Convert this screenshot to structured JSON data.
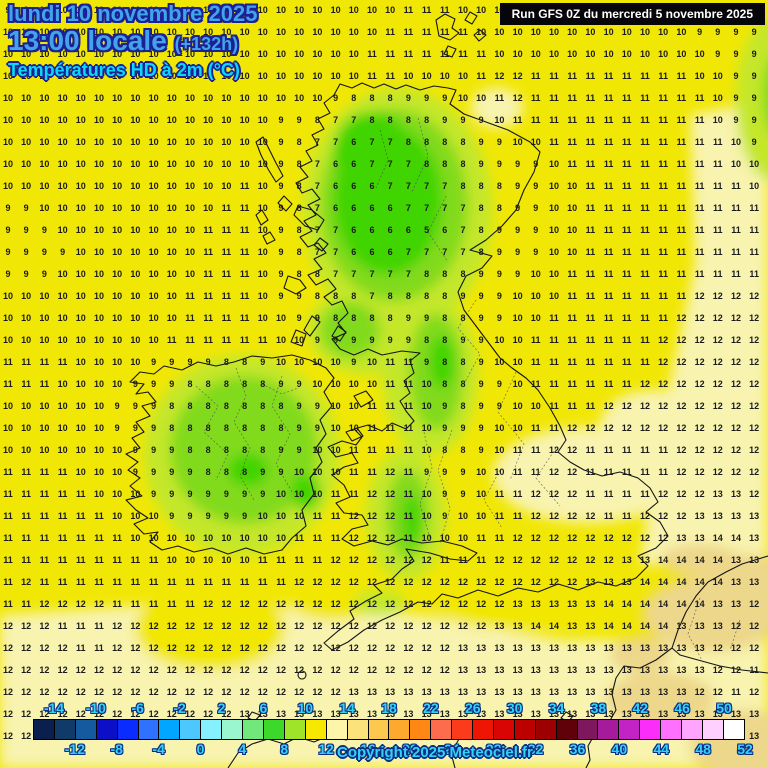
{
  "header": {
    "date_line": "lundi 10 novembre 2025",
    "time_line": "13:00 locale",
    "time_offset": "(+132h)",
    "variable_line": "Températures HD à 2m (°C)"
  },
  "run_info": {
    "label": "Run GFS 0Z du mercredi 5 novembre 2025"
  },
  "copyright": "Copyright 2025 Meteociel.fr",
  "scale": {
    "unit": "°C",
    "min": -16,
    "max": 52,
    "step": 2,
    "top_labels": [
      -14,
      -10,
      -6,
      -2,
      2,
      6,
      10,
      14,
      18,
      22,
      26,
      30,
      34,
      38,
      42,
      46,
      50
    ],
    "bottom_labels": [
      -12,
      -8,
      -4,
      0,
      4,
      8,
      12,
      16,
      20,
      24,
      28,
      32,
      36,
      40,
      44,
      48,
      52
    ],
    "cell_colors": [
      "#0a1f4d",
      "#103a68",
      "#155a9e",
      "#0b10c8",
      "#0b2cfe",
      "#2e72ff",
      "#00a6ff",
      "#4cc8ff",
      "#85f0ff",
      "#9af6cf",
      "#72e87c",
      "#3cd92a",
      "#a0e42a",
      "#f6e800",
      "#fdf6a8",
      "#fbe27a",
      "#fdc84e",
      "#ffa82e",
      "#ff8714",
      "#fe6c4e",
      "#fc3a1c",
      "#ef1505",
      "#d90404",
      "#bc0000",
      "#9c0000",
      "#600008",
      "#7f175f",
      "#a51b9b",
      "#c322c4",
      "#fb2dfb",
      "#ff70ff",
      "#ffa5ff",
      "#fdd0fd",
      "#ffffff"
    ]
  },
  "map_colors": {
    "base_yellow": "#f1e705",
    "pale_yellow_12c": "#f8f3ae",
    "sand_14c": "#edd78a",
    "yellow_green_9c": "#c4e72b",
    "green_8c": "#82da1b",
    "bright_green_6c": "#3fd400",
    "coastline": "#141414",
    "number_text": "#1b1b1b"
  },
  "temperature_grid": {
    "cols": 42,
    "rows": 34,
    "values": [
      "9 9 10 10 10 10 10 10 10 10 10 10 10 10 10 10 10 10 10 10 10 10 11 11 11 10 10 10 10 10 10 10 10 10 10 10 10 10 10 9 9 9",
      "10 10 10 10 10 10 10 10 10 10 10 10 10 10 10 10 10 10 10 10 10 11 11 11 11 11 10 10 10 10 10 10 10 10 10 10 10 10 9 9 9 9",
      "10 10 10 10 10 10 10 10 10 10 10 10 10 10 10 10 10 10 10 10 11 11 11 11 11 11 11 10 10 10 10 10 10 10 10 10 10 10 10 9 9 9",
      "10 10 10 10 10 10 10 10 10 10 10 10 10 10 10 10 10 10 10 10 11 11 10 10 10 10 11 12 12 11 11 11 11 11 11 11 11 11 10 10 9 9",
      "10 10 10 10 10 10 10 10 10 10 10 10 10 10 10 10 10 10 9 8 8 8 9 9 9 10 10 11 12 11 11 11 11 11 11 11 11 11 11 10 9 9",
      "10 10 10 10 10 10 10 10 10 10 10 10 10 10 10 9 9 8 7 7 8 8 8 8 9 9 9 10 11 11 11 11 11 11 11 11 11 11 11 10 9 9",
      "10 10 10 10 10 10 10 10 10 10 10 10 10 10 10 9 8 7 7 6 7 7 8 8 8 8 9 9 10 10 11 11 11 11 11 11 11 11 11 11 10 9",
      "10 10 10 10 10 10 10 10 10 10 10 10 10 10 10 9 8 7 6 6 7 7 7 8 8 8 9 9 9 9 10 11 11 11 11 11 11 11 11 11 10 10",
      "10 10 10 10 10 10 10 10 10 10 10 10 10 11 10 9 8 7 6 6 6 7 7 7 7 8 8 8 9 9 10 10 11 11 11 11 11 11 11 11 11 10",
      "9 9 10 10 10 10 10 10 10 10 10 10 11 11 10 9 8 7 6 6 6 6 7 7 7 7 8 8 9 9 10 10 11 11 11 11 11 11 11 11 11 11",
      "9 9 9 10 10 10 10 10 10 10 10 11 11 11 10 9 8 7 7 6 6 6 6 5 6 7 8 9 9 9 10 10 11 11 11 11 11 11 11 11 11 11",
      "9 9 9 9 10 10 10 10 10 10 10 11 11 11 10 9 8 7 7 6 6 6 7 7 7 7 8 9 9 9 10 10 11 11 11 11 11 11 11 11 11 11",
      "9 9 9 10 10 10 10 10 10 10 10 11 11 11 10 9 8 8 7 7 7 7 7 8 8 8 9 9 9 10 10 11 11 11 11 11 11 11 11 11 11 11",
      "10 10 10 10 10 10 10 10 10 10 11 11 11 11 10 9 9 8 8 8 7 8 8 8 8 9 9 9 10 10 10 11 11 11 11 11 11 11 12 12 12 12",
      "10 10 10 10 10 10 10 10 10 10 11 11 11 11 10 10 9 9 8 8 8 8 9 9 8 8 9 9 10 10 11 11 11 11 11 11 11 12 12 12 12 12",
      "10 10 10 10 10 10 10 10 10 11 11 11 11 11 11 10 10 9 9 9 9 9 9 8 8 9 9 10 10 11 11 11 11 11 11 11 12 12 12 12 12 12",
      "11 11 11 11 10 10 10 10 9 9 9 9 8 8 9 10 10 10 10 9 10 11 11 9 8 8 9 10 10 11 11 11 11 11 11 11 12 12 12 12 12 12",
      "11 11 11 10 10 10 10 9 9 9 8 8 8 8 8 9 9 10 10 10 10 11 11 10 8 8 9 9 10 11 11 11 11 11 11 12 12 12 12 12 12 12",
      "10 10 10 10 10 10 9 9 9 8 8 8 8 8 8 8 9 9 10 10 11 11 11 10 9 8 9 9 10 10 11 11 11 12 12 12 12 12 12 12 12 12",
      "10 10 10 10 10 10 9 9 9 8 8 8 8 8 8 8 9 9 10 10 11 11 11 10 9 9 9 10 10 11 11 12 12 12 12 12 12 12 12 12 12 12",
      "10 10 10 10 10 10 10 9 9 9 8 8 8 8 8 9 9 10 10 11 11 11 11 10 8 8 9 10 11 11 12 12 11 11 11 11 11 12 12 12 12 12",
      "11 11 11 11 10 10 10 9 9 9 9 8 8 8 9 9 10 10 10 11 11 12 11 9 9 9 10 10 11 11 12 12 11 11 11 11 11 12 12 12 12 12",
      "11 11 11 11 11 10 10 10 9 9 9 9 9 9 9 10 10 10 11 11 12 12 11 10 9 9 10 11 11 12 12 12 11 11 11 11 12 12 12 13 13 12",
      "11 11 11 11 11 11 10 10 10 9 9 9 9 9 10 10 10 11 11 12 12 12 11 10 9 10 10 11 11 12 12 12 12 11 11 12 12 12 13 13 13 13",
      "11 11 11 11 11 11 11 10 10 10 10 10 10 10 10 10 11 11 11 12 12 12 11 10 10 10 11 11 12 12 12 12 12 12 12 12 12 13 13 14 14 13",
      "11 11 11 11 11 11 11 11 11 10 10 10 10 10 11 11 11 11 12 12 12 12 12 12 11 11 11 12 12 12 12 12 12 12 13 13 14 14 14 14 13 13",
      "11 12 11 11 11 11 11 11 11 11 11 11 11 11 11 11 12 12 12 12 12 12 12 12 12 12 12 12 12 12 12 12 13 13 13 14 14 14 14 14 13 13",
      "11 11 12 12 12 12 11 11 11 11 11 12 12 12 12 12 12 12 12 12 12 12 12 12 12 12 12 12 13 13 13 13 13 14 14 14 14 14 14 13 13 12",
      "12 12 12 11 11 11 12 12 12 12 12 12 12 12 12 12 12 12 12 12 12 12 12 12 12 12 12 13 13 14 14 13 13 14 14 14 14 13 13 13 12 12",
      "12 12 12 12 11 11 12 12 12 12 12 12 12 12 12 12 12 12 12 12 12 12 12 12 12 13 13 13 13 13 13 13 13 13 13 13 13 13 13 12 12 12",
      "12 12 12 12 12 12 12 12 12 12 12 12 12 12 12 12 12 12 12 12 12 12 12 12 12 13 13 13 13 13 13 13 13 13 13 13 13 13 13 12 12 11",
      "12 12 12 12 12 12 12 12 12 12 12 12 12 12 12 12 12 12 12 13 13 13 13 13 13 13 13 13 13 13 13 13 13 13 13 13 13 13 12 12 11 12",
      "12 12 12 12 12 12 12 12 12 12 12 12 12 13 13 13 13 13 13 13 13 13 13 13 13 13 13 13 13 13 13 13 13 13 13 13 13 13 13 13 13 13",
      "12 12 12 12 12 12 12 12 12 12 12 13 13 13 13 13 13 13 13 13 13 13 13 13 13 13 13 13 13 13 13 13 13 13 13 14 14 13 13 14 13 13"
    ]
  }
}
